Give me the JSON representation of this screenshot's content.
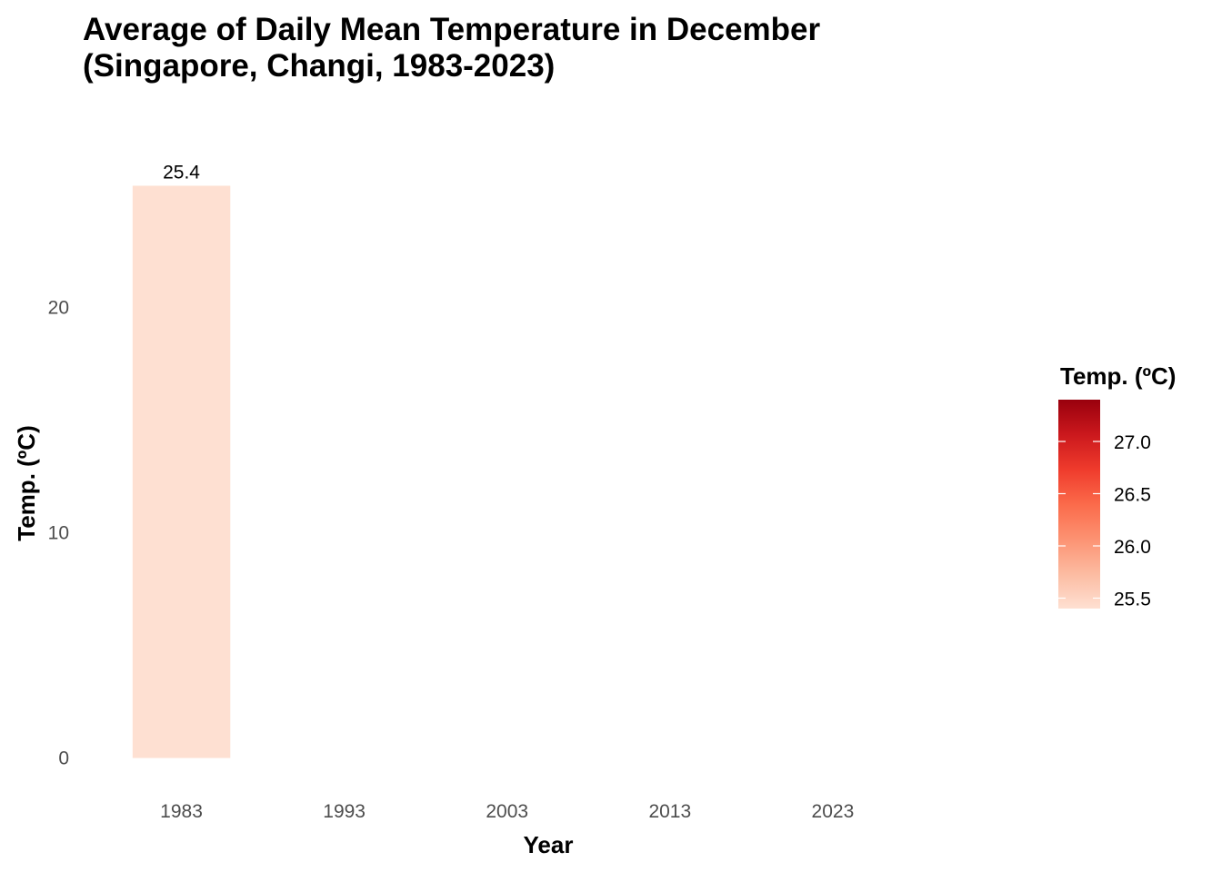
{
  "chart_data": {
    "type": "bar",
    "title_lines": [
      "Average of Daily Mean Temperature in December",
      "(Singapore, Changi, 1983-2023)"
    ],
    "xlabel": "Year",
    "ylabel": "Temp. (ºC)",
    "x_range": [
      1978,
      2033
    ],
    "x_ticks": [
      1983,
      1993,
      2003,
      2013,
      2023
    ],
    "x_tick_labels": [
      "1983",
      "1993",
      "2003",
      "2013",
      "2023"
    ],
    "ylim": [
      -1.27,
      28.0
    ],
    "y_ticks": [
      0,
      10,
      20
    ],
    "y_tick_labels": [
      "0",
      "10",
      "20"
    ],
    "grid": false,
    "bar_width_years": 6,
    "bars": [
      {
        "year": 1983,
        "value": 25.4,
        "label": "25.4"
      }
    ],
    "legend": {
      "title": "Temp. (ºC)",
      "position": "right",
      "range": [
        25.4,
        27.4
      ],
      "ticks": [
        25.5,
        26.0,
        26.5,
        27.0
      ],
      "tick_labels": [
        "25.5",
        "26.0",
        "26.5",
        "27.0"
      ],
      "colors": [
        "#fee0d2",
        "#fcbba1",
        "#fc9272",
        "#fb6a4a",
        "#ef3b2c",
        "#cb181d",
        "#99000d"
      ]
    }
  }
}
